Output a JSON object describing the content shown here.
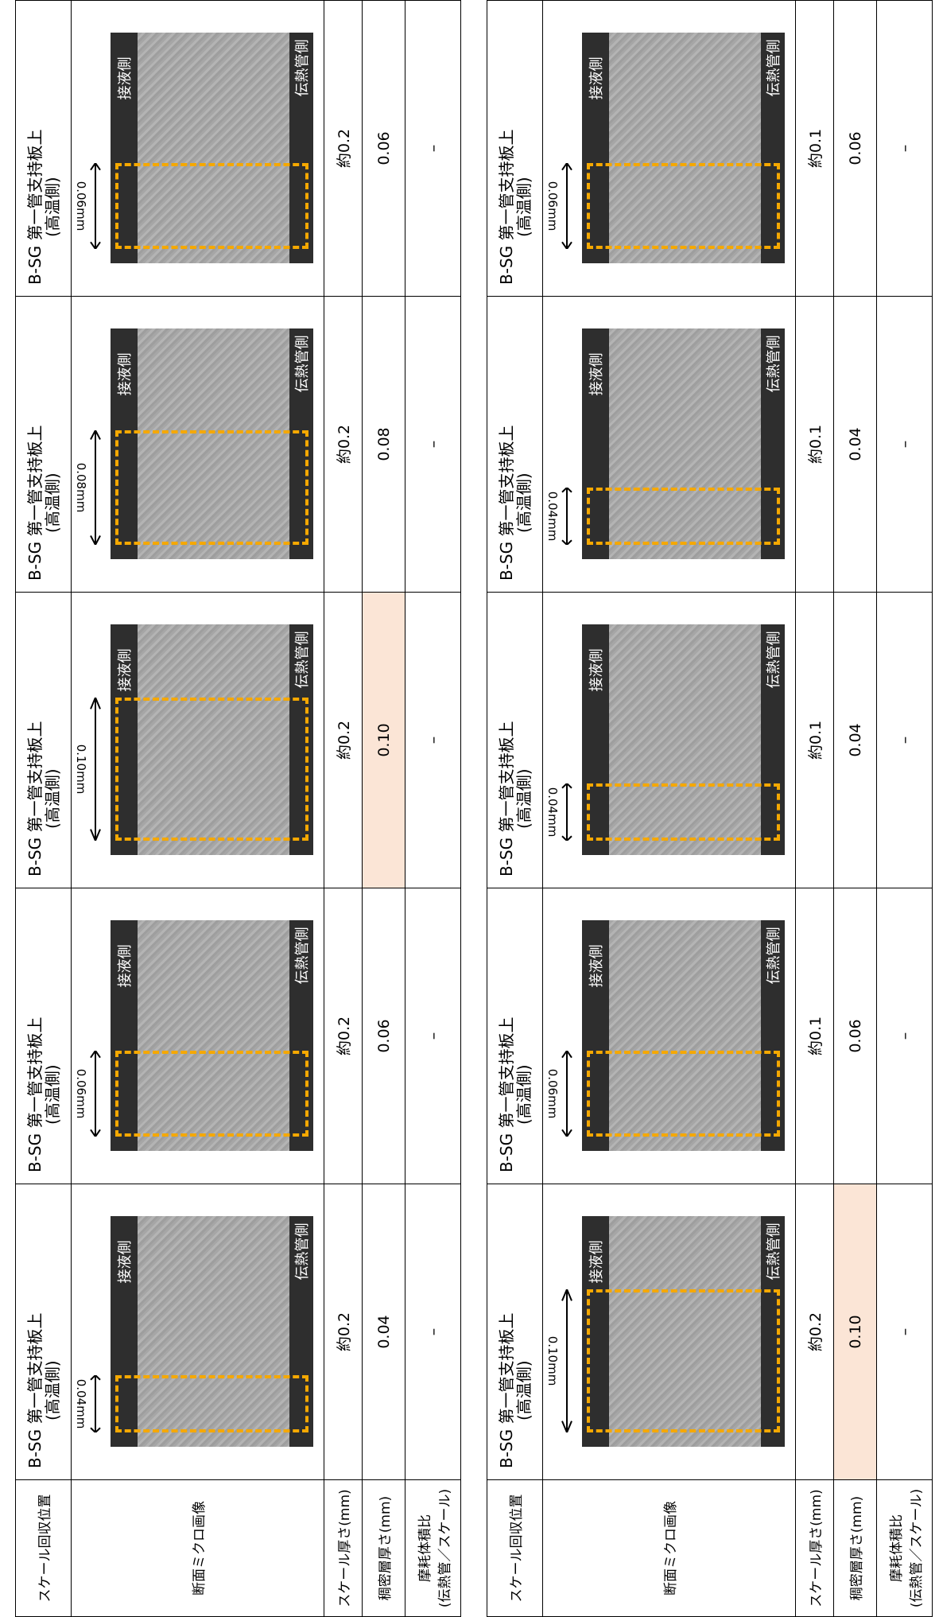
{
  "tables": [
    {
      "row_labels": {
        "location": "スケール回収位置",
        "image": "断面ミクロ画像",
        "scale_thickness": "スケール厚さ(mm)",
        "dense_layer": "稠密層厚さ(mm)",
        "wear_ratio": [
          "摩耗体積比",
          "(伝熱管／スケール)"
        ]
      },
      "columns": [
        {
          "location": [
            "B-SG 第一管支持板上",
            "(高温側)"
          ],
          "image": {
            "top_label": "接液側",
            "bottom_label": "伝熱管側",
            "thickness": "0.04mm"
          },
          "scale_thickness": "約0.2",
          "dense_layer": "0.04",
          "wear_ratio": "–"
        },
        {
          "location": [
            "B-SG 第一管支持板上",
            "(高温側)"
          ],
          "image": {
            "top_label": "接液側",
            "bottom_label": "伝熱管側",
            "thickness": "0.06mm"
          },
          "scale_thickness": "約0.2",
          "dense_layer": "0.06",
          "wear_ratio": "–"
        },
        {
          "location": [
            "B-SG 第一管支持板上",
            "(高温側)"
          ],
          "image": {
            "top_label": "接液側",
            "bottom_label": "伝熱管側",
            "thickness": "0.10mm"
          },
          "scale_thickness": "約0.2",
          "dense_layer": "0.10",
          "highlight": true,
          "wear_ratio": "–"
        },
        {
          "location": [
            "B-SG 第一管支持板上",
            "(高温側)"
          ],
          "image": {
            "top_label": "接液側",
            "bottom_label": "伝熱管側",
            "thickness": "0.08mm"
          },
          "scale_thickness": "約0.2",
          "dense_layer": "0.08",
          "wear_ratio": "–"
        },
        {
          "location": [
            "B-SG 第一管支持板上",
            "(高温側)"
          ],
          "image": {
            "top_label": "接液側",
            "bottom_label": "伝熱管側",
            "thickness": "0.06mm"
          },
          "scale_thickness": "約0.2",
          "dense_layer": "0.06",
          "wear_ratio": "–"
        }
      ]
    },
    {
      "row_labels": {
        "location": "スケール回収位置",
        "image": "断面ミクロ画像",
        "scale_thickness": "スケール厚さ(mm)",
        "dense_layer": "稠密層厚さ(mm)",
        "wear_ratio": [
          "摩耗体積比",
          "(伝熱管／スケール)"
        ]
      },
      "columns": [
        {
          "location": [
            "B-SG 第一管支持板上",
            "(高温側)"
          ],
          "image": {
            "top_label": "接液側",
            "bottom_label": "伝熱管側",
            "thickness": "0.10mm"
          },
          "scale_thickness": "約0.2",
          "dense_layer": "0.10",
          "highlight": true,
          "wear_ratio": "–"
        },
        {
          "location": [
            "B-SG 第一管支持板上",
            "(高温側)"
          ],
          "image": {
            "top_label": "接液側",
            "bottom_label": "伝熱管側",
            "thickness": "0.06mm"
          },
          "scale_thickness": "約0.1",
          "dense_layer": "0.06",
          "wear_ratio": "–"
        },
        {
          "location": [
            "B-SG 第一管支持板上",
            "(高温側)"
          ],
          "image": {
            "top_label": "接液側",
            "bottom_label": "伝熱管側",
            "thickness": "0.04mm"
          },
          "scale_thickness": "約0.1",
          "dense_layer": "0.04",
          "wear_ratio": "–"
        },
        {
          "location": [
            "B-SG 第一管支持板上",
            "(高温側)"
          ],
          "image": {
            "top_label": "接液側",
            "bottom_label": "伝熱管側",
            "thickness": "0.04mm"
          },
          "scale_thickness": "約0.1",
          "dense_layer": "0.04",
          "wear_ratio": "–"
        },
        {
          "location": [
            "B-SG 第一管支持板上",
            "(高温側)"
          ],
          "image": {
            "top_label": "接液側",
            "bottom_label": "伝熱管側",
            "thickness": "0.06mm"
          },
          "scale_thickness": "約0.1",
          "dense_layer": "0.06",
          "wear_ratio": "–"
        }
      ]
    }
  ]
}
